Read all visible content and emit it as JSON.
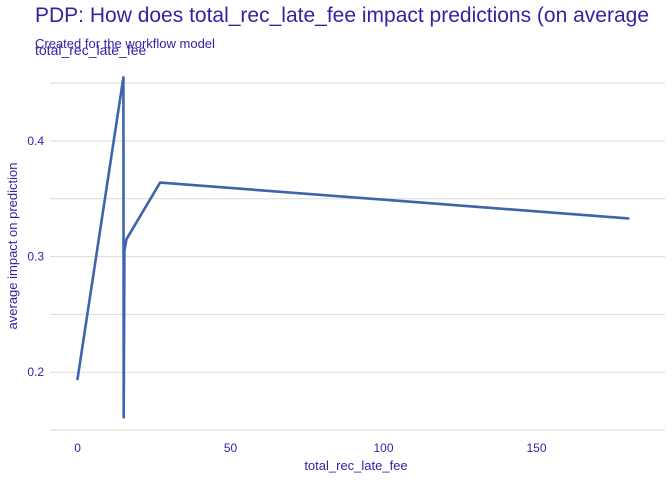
{
  "chart_data": {
    "type": "line",
    "title": "PDP: How does total_rec_late_fee impact predictions (on average",
    "subtitle": "Created for the workflow model",
    "facet_label": "total_rec_late_fee",
    "xlabel": "total_rec_late_fee",
    "ylabel": "average impact on prediction",
    "xlim": [
      -9,
      192
    ],
    "ylim": [
      0.15,
      0.47
    ],
    "x_ticks": [
      0,
      50,
      100,
      150
    ],
    "y_ticks": [
      0.2,
      0.3,
      0.4
    ],
    "y_ticks_display": [
      "0.2",
      "0.3",
      "0.4"
    ],
    "grid": true,
    "legend": "none",
    "series": [
      {
        "color": "#3e64aa",
        "points": [
          {
            "x": 0,
            "y": 0.194
          },
          {
            "x": 15,
            "y": 0.455
          },
          {
            "x": 15.1,
            "y": 0.161
          },
          {
            "x": 15.3,
            "y": 0.305
          },
          {
            "x": 16,
            "y": 0.315
          },
          {
            "x": 27,
            "y": 0.364
          },
          {
            "x": 180,
            "y": 0.333
          }
        ]
      }
    ]
  }
}
